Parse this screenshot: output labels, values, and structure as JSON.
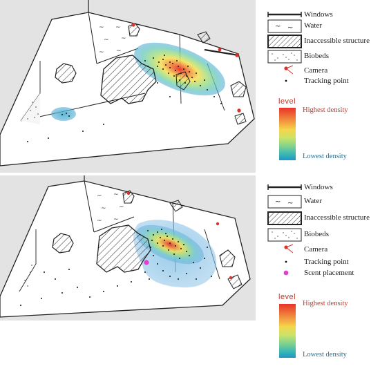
{
  "panels": [
    {
      "legend": {
        "items": [
          {
            "label": "Windows",
            "icon": "window-line-icon"
          },
          {
            "label": "Water",
            "icon": "water-icon"
          },
          {
            "label": "Inaccessible structure",
            "icon": "hatched-structure-icon"
          },
          {
            "label": "Biobeds",
            "icon": "biobed-icon"
          },
          {
            "label": "Camera",
            "icon": "camera-icon"
          },
          {
            "label": "Tracking point",
            "icon": "tracking-point-icon"
          }
        ],
        "level_title": "level",
        "highest_label": "Highest density",
        "lowest_label": "Lowest density"
      }
    },
    {
      "legend": {
        "items": [
          {
            "label": "Windows",
            "icon": "window-line-icon"
          },
          {
            "label": "Water",
            "icon": "water-icon"
          },
          {
            "label": "Inaccessible structure",
            "icon": "hatched-structure-icon"
          },
          {
            "label": "Biobeds",
            "icon": "biobed-icon"
          },
          {
            "label": "Camera",
            "icon": "camera-icon"
          },
          {
            "label": "Tracking point",
            "icon": "tracking-point-icon"
          },
          {
            "label": "Scent placement",
            "icon": "scent-placement-icon"
          }
        ],
        "level_title": "level",
        "highest_label": "Highest density",
        "lowest_label": "Lowest density"
      }
    }
  ],
  "colors": {
    "background_gray": "#e3e3e3",
    "camera": "#d9342b",
    "scent": "#e040d0",
    "outline": "#222222"
  }
}
